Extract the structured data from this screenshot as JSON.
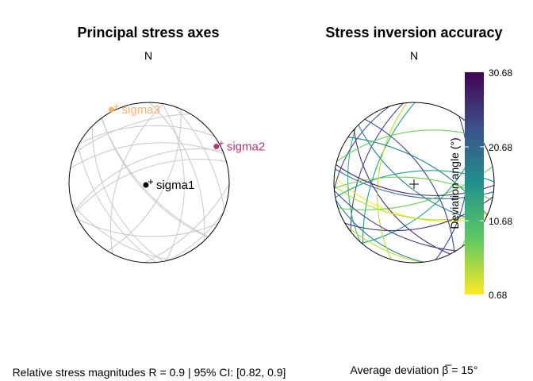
{
  "chart_data": [
    {
      "type": "scatter",
      "title": "Principal stress axes",
      "north_label": "N",
      "series": [
        {
          "name": "sigma1",
          "color": "#000000",
          "point": [
            -0.04,
            -0.03
          ]
        },
        {
          "name": "sigma2",
          "color": "#b5367a",
          "point": [
            0.84,
            0.45
          ]
        },
        {
          "name": "sigma3",
          "color": "#fcae6b",
          "point": [
            -0.47,
            0.91
          ]
        }
      ],
      "footer": "Relative stress magnitudes R = 0.9 | 95% CI: [0.82, 0.9]"
    },
    {
      "type": "scatter",
      "title": "Stress inversion accuracy",
      "north_label": "N",
      "colorbar": {
        "title": "Deviation angle (°)",
        "ticks": [
          "30.68",
          "20.68",
          "10.68",
          "0.68"
        ],
        "min": 0.68,
        "max": 30.68
      },
      "footer": "Average deviation β̅ = 15°"
    }
  ]
}
